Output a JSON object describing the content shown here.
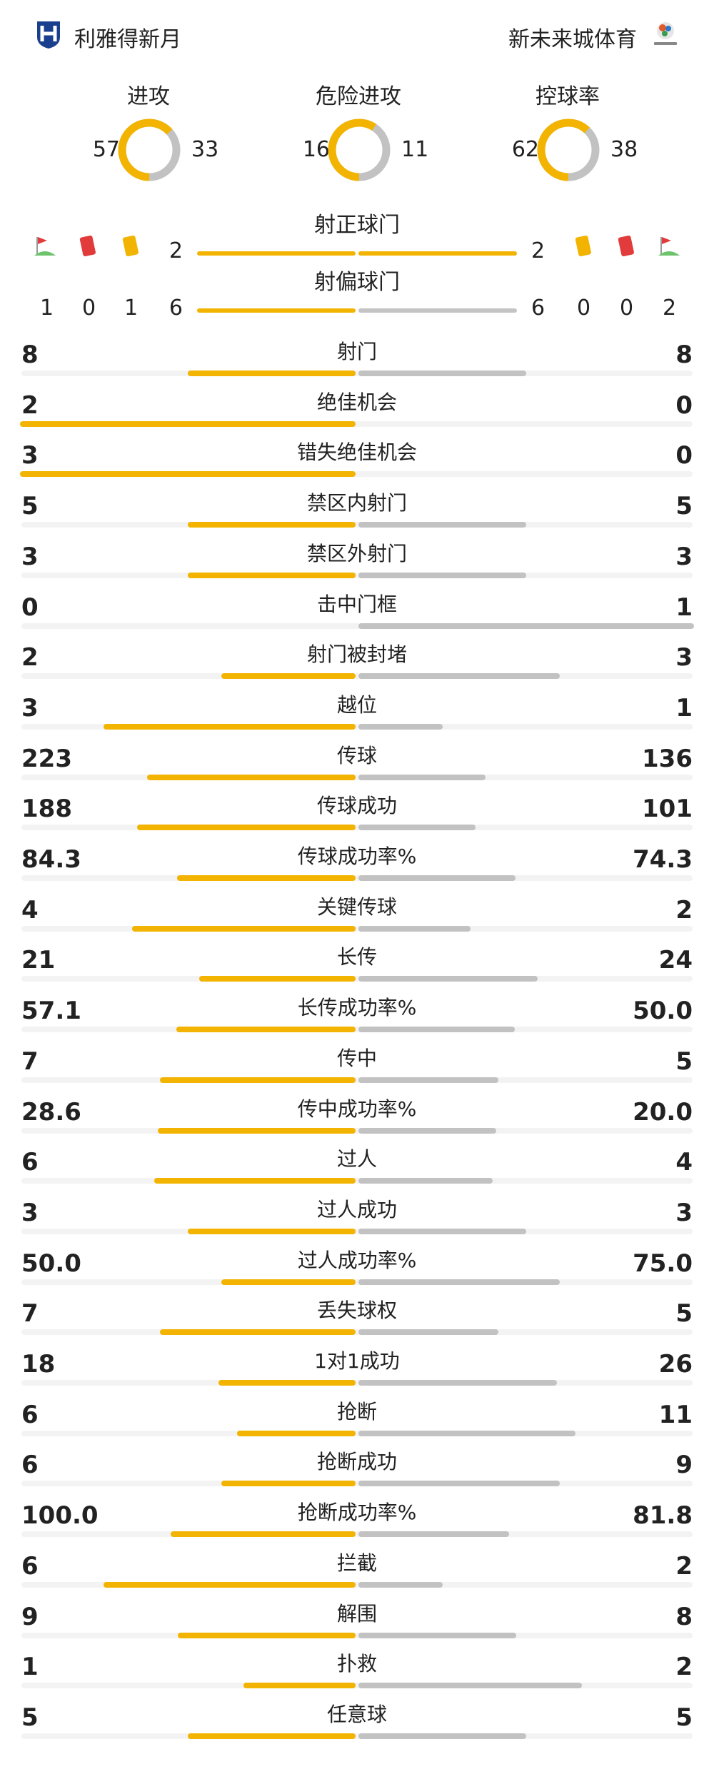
{
  "teams": {
    "home": {
      "name": "利雅得新月",
      "logo_icon": "al-hilal-crest-icon"
    },
    "away": {
      "name": "新未来城体育",
      "logo_icon": "neom-sc-crest-icon"
    }
  },
  "colors": {
    "home": "#f2b400",
    "away": "#c2c2c2",
    "track": "#f3f3f3"
  },
  "summary": [
    {
      "label": "进攻",
      "home": "57",
      "away": "33"
    },
    {
      "label": "危险进攻",
      "home": "16",
      "away": "11"
    },
    {
      "label": "控球率",
      "home": "62",
      "away": "38"
    }
  ],
  "shots_on": {
    "label": "射正球门",
    "home": "2",
    "away": "2"
  },
  "shots_off": {
    "label": "射偏球门",
    "home": "6",
    "away": "6",
    "home_corners": "1",
    "home_red": "0",
    "home_yellow": "1",
    "away_yellow": "0",
    "away_red": "0",
    "away_corners": "2"
  },
  "icons": {
    "corner": "corner-flag-icon",
    "red": "red-card-icon",
    "yellow": "yellow-card-icon"
  },
  "stats": [
    {
      "name": "射门",
      "home": "8",
      "away": "8"
    },
    {
      "name": "绝佳机会",
      "home": "2",
      "away": "0"
    },
    {
      "name": "错失绝佳机会",
      "home": "3",
      "away": "0"
    },
    {
      "name": "禁区内射门",
      "home": "5",
      "away": "5"
    },
    {
      "name": "禁区外射门",
      "home": "3",
      "away": "3"
    },
    {
      "name": "击中门框",
      "home": "0",
      "away": "1"
    },
    {
      "name": "射门被封堵",
      "home": "2",
      "away": "3"
    },
    {
      "name": "越位",
      "home": "3",
      "away": "1"
    },
    {
      "name": "传球",
      "home": "223",
      "away": "136"
    },
    {
      "name": "传球成功",
      "home": "188",
      "away": "101"
    },
    {
      "name": "传球成功率%",
      "home": "84.3",
      "away": "74.3"
    },
    {
      "name": "关键传球",
      "home": "4",
      "away": "2"
    },
    {
      "name": "长传",
      "home": "21",
      "away": "24"
    },
    {
      "name": "长传成功率%",
      "home": "57.1",
      "away": "50.0"
    },
    {
      "name": "传中",
      "home": "7",
      "away": "5"
    },
    {
      "name": "传中成功率%",
      "home": "28.6",
      "away": "20.0"
    },
    {
      "name": "过人",
      "home": "6",
      "away": "4"
    },
    {
      "name": "过人成功",
      "home": "3",
      "away": "3"
    },
    {
      "name": "过人成功率%",
      "home": "50.0",
      "away": "75.0"
    },
    {
      "name": "丢失球权",
      "home": "7",
      "away": "5"
    },
    {
      "name": "1对1成功",
      "home": "18",
      "away": "26"
    },
    {
      "name": "抢断",
      "home": "6",
      "away": "11"
    },
    {
      "name": "抢断成功",
      "home": "6",
      "away": "9"
    },
    {
      "name": "抢断成功率%",
      "home": "100.0",
      "away": "81.8"
    },
    {
      "name": "拦截",
      "home": "6",
      "away": "2"
    },
    {
      "name": "解围",
      "home": "9",
      "away": "8"
    },
    {
      "name": "扑救",
      "home": "1",
      "away": "2"
    },
    {
      "name": "任意球",
      "home": "5",
      "away": "5"
    }
  ]
}
